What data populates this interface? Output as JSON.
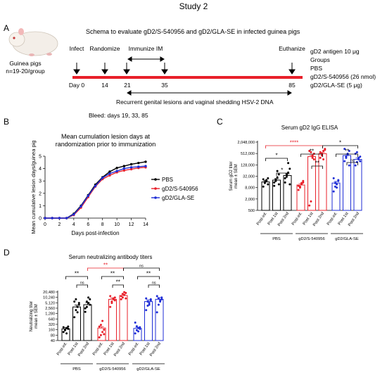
{
  "figure_title": "Study 2",
  "panels": {
    "A": {
      "letter": "A",
      "animal_label": "Guinea pigs",
      "group_size": "n=19-20/group",
      "schema_title": "Schema to evaluate gD2/S-540956 and gD2/GLA-SE in infected guinea pigs",
      "infect": "Infect",
      "randomize": "Randomize",
      "immunize": "Immunize IM",
      "euthanize": "Euthanize",
      "days": [
        "Day 0",
        "14",
        "21",
        "35",
        "85"
      ],
      "recurrent": "Recurrent genital lesions and vaginal shedding HSV-2 DNA",
      "bleed": "Bleed: days 19, 33, 85",
      "groups_info": [
        "gD2 antigen 10 μg",
        "Groups",
        "PBS",
        "gD2/S-540956 (26 nmol)",
        "gD2/GLA-SE (5 μg)"
      ]
    },
    "B": {
      "letter": "B"
    },
    "C": {
      "letter": "C"
    },
    "D": {
      "letter": "D"
    }
  },
  "colors": {
    "PBS": "#000000",
    "gD2/S-540956": "#e8202a",
    "gD2/GLA-SE": "#1f2ed6",
    "timeline": "#e8202a"
  },
  "chart_data": [
    {
      "type": "line",
      "title": "Mean cumulation lesion days at randomization prior to immunization",
      "title_lines": [
        "Mean cumulation lesion days at",
        "randomization prior to immunization"
      ],
      "xlabel": "Days post-infection",
      "ylabel": "Mean cumulative lesion days/guinea pig",
      "xlim": [
        0,
        14
      ],
      "ylim": [
        0,
        5
      ],
      "xticks": [
        0,
        2,
        4,
        6,
        8,
        10,
        12,
        14
      ],
      "yticks": [
        0,
        1,
        2,
        3,
        4,
        5
      ],
      "legend": "right",
      "x": [
        0,
        1,
        2,
        3,
        4,
        5,
        6,
        7,
        8,
        9,
        10,
        11,
        12,
        13,
        14
      ],
      "series": [
        {
          "name": "PBS",
          "values": [
            0,
            0,
            0,
            0,
            0.35,
            1.0,
            1.85,
            2.7,
            3.3,
            3.75,
            4.05,
            4.2,
            4.35,
            4.45,
            4.55
          ]
        },
        {
          "name": "gD2/S-540956",
          "values": [
            0,
            0,
            0,
            0,
            0.25,
            0.85,
            1.7,
            2.55,
            3.15,
            3.45,
            3.7,
            3.85,
            3.95,
            4.05,
            4.1
          ]
        },
        {
          "name": "gD2/GLA-SE",
          "values": [
            0,
            0,
            0,
            0,
            0.3,
            0.95,
            1.8,
            2.6,
            3.25,
            3.6,
            3.8,
            4.0,
            4.1,
            4.15,
            4.2
          ]
        }
      ]
    },
    {
      "type": "bar",
      "title": "Serum gD2 IgG ELISA",
      "ylabel_lines": [
        "Serum gD2 titer",
        "mean ± SEM"
      ],
      "scale": "log",
      "ylim": [
        500,
        2048000
      ],
      "yticks": [
        500,
        2000,
        8000,
        32000,
        128000,
        512000,
        2048000
      ],
      "ytick_labels": [
        "500",
        "2,000",
        "8,000",
        "32,000",
        "128,000",
        "512,000",
        "2,048,000"
      ],
      "categories": [
        "Post-inf.",
        "Post 1st",
        "Post 2nd"
      ],
      "groups": [
        {
          "name": "PBS",
          "values": [
            16000,
            20000,
            35000
          ],
          "errors": [
            3000,
            4000,
            8000
          ],
          "points": [
            [
              9000,
              14000,
              18000,
              12000,
              22000,
              16000,
              20000,
              25000
            ],
            [
              10000,
              18000,
              28000,
              40000,
              15000,
              22000,
              60000,
              12000
            ],
            [
              15000,
              30000,
              50000,
              80000,
              25000,
              40000,
              160000,
              12000
            ]
          ]
        },
        {
          "name": "gD2/S-540956",
          "values": [
            11000,
            350000,
            500000
          ],
          "errors": [
            2000,
            60000,
            80000
          ],
          "points": [
            [
              6000,
              9000,
              12000,
              15000,
              10000,
              8000,
              14000,
              18000
            ],
            [
              900,
              1500,
              300000,
              500000,
              700000,
              600000,
              400000,
              250000
            ],
            [
              300000,
              500000,
              700000,
              900000,
              600000,
              400000,
              250000,
              800000
            ]
          ]
        },
        {
          "name": "gD2/GLA-SE",
          "values": [
            14000,
            400000,
            250000
          ],
          "errors": [
            3000,
            70000,
            50000
          ],
          "points": [
            [
              5000,
              9000,
              12000,
              18000,
              25000,
              14000,
              8000,
              20000
            ],
            [
              200000,
              350000,
              500000,
              700000,
              900000,
              300000,
              450000,
              120000
            ],
            [
              120000,
              180000,
              250000,
              350000,
              500000,
              600000,
              300000,
              200000
            ]
          ]
        }
      ],
      "significance": [
        {
          "label": "*",
          "color": "#000000"
        },
        {
          "label": "*",
          "color": "#000000"
        },
        {
          "label": "****",
          "color": "#e8202a"
        },
        {
          "label": "**",
          "color": "#000000"
        },
        {
          "label": "**",
          "color": "#000000"
        },
        {
          "label": "*",
          "color": "#000000"
        },
        {
          "label": "**",
          "color": "#000000"
        },
        {
          "label": "ns",
          "color": "#000000"
        }
      ]
    },
    {
      "type": "bar",
      "title": "Serum neutralizing antibody titers",
      "ylabel_lines": [
        "Neutralizing titer",
        "mean ± SEM"
      ],
      "scale": "log",
      "ylim": [
        40,
        20480
      ],
      "yticks": [
        40,
        80,
        160,
        320,
        640,
        1280,
        2560,
        5120,
        10240,
        20480
      ],
      "ytick_labels": [
        "40",
        "80",
        "160",
        "320",
        "640",
        "1,280",
        "2,560",
        "5,120",
        "10,240",
        "20,480"
      ],
      "categories": [
        "Post-inf.",
        "Post 1st",
        "Post 2nd"
      ],
      "groups": [
        {
          "name": "PBS",
          "values": [
            180,
            3000,
            4000
          ],
          "errors": [
            30,
            800,
            1200
          ],
          "points": [
            [
              120,
              150,
              200,
              180,
              220,
              160,
              100,
              240
            ],
            [
              800,
              2000,
              3000,
              5000,
              6000,
              8000,
              1500,
              4000
            ],
            [
              1600,
              3000,
              5000,
              8000,
              2500,
              6000,
              10000,
              4000
            ]
          ]
        },
        {
          "name": "gD2/S-540956",
          "values": [
            200,
            8000,
            13000
          ],
          "errors": [
            40,
            1500,
            2500
          ],
          "points": [
            [
              60,
              80,
              120,
              160,
              240,
              300,
              500,
              90
            ],
            [
              3000,
              5000,
              8000,
              10000,
              12000,
              6000,
              9000,
              7000
            ],
            [
              8000,
              10000,
              14000,
              18000,
              12000,
              16000,
              20000,
              9000
            ]
          ]
        },
        {
          "name": "gD2/GLA-SE",
          "values": [
            190,
            6000,
            8000
          ],
          "errors": [
            30,
            1500,
            2000
          ],
          "points": [
            [
              100,
              150,
              200,
              180,
              400,
              250,
              130,
              220
            ],
            [
              2000,
              3500,
              5000,
              7000,
              9000,
              6000,
              4000,
              8000
            ],
            [
              1500,
              4000,
              7000,
              10000,
              12000,
              9000,
              6000,
              8000
            ]
          ]
        }
      ],
      "significance": [
        {
          "label": "**",
          "color": "#000000"
        },
        {
          "label": "ns",
          "color": "#000000"
        },
        {
          "label": "**",
          "color": "#e8202a"
        },
        {
          "label": "ns",
          "color": "#000000"
        },
        {
          "label": "**",
          "color": "#000000"
        },
        {
          "label": "**",
          "color": "#000000"
        },
        {
          "label": "ns",
          "color": "#000000"
        },
        {
          "label": "**",
          "color": "#000000"
        }
      ]
    }
  ]
}
